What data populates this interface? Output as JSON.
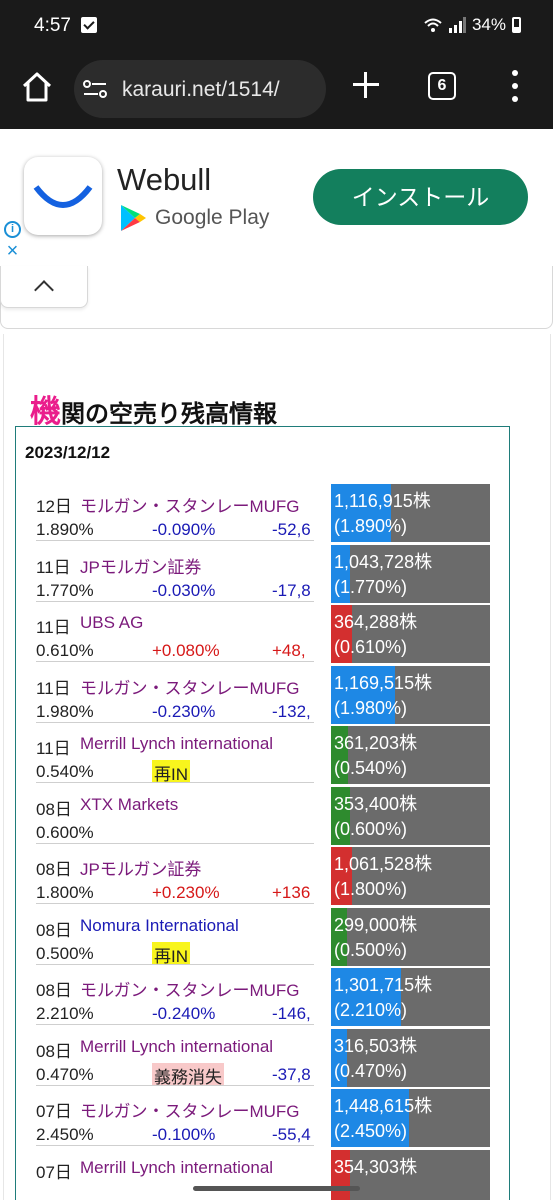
{
  "status_bar": {
    "time": "4:57",
    "battery": "34%"
  },
  "browser": {
    "url": "karauri.net/1514/",
    "tab_count": "6"
  },
  "ad": {
    "app_name": "Webull",
    "store": "Google Play",
    "install_label": "インストール",
    "info_icon": "info-icon",
    "close_icon": "close-icon"
  },
  "section": {
    "title_accent": "機",
    "title_rest": "関の空売り残高情報"
  },
  "table": {
    "date": "2023/12/12",
    "rows": [
      {
        "day": "12日",
        "name": "モルガン・スタンレーMUFG",
        "name_color": "purple",
        "ratio": "1.890%",
        "change": "-0.090%",
        "change_dir": "neg",
        "diff": "-52,6",
        "badge": "",
        "shares": "1,116,915株",
        "ratio_paren": "(1.890%)",
        "bar_color": "#1e88e5",
        "bar_fill": 0.38
      },
      {
        "day": "11日",
        "name": "JPモルガン証券",
        "name_color": "purple",
        "ratio": "1.770%",
        "change": "-0.030%",
        "change_dir": "neg",
        "diff": "-17,8",
        "badge": "",
        "shares": "1,043,728株",
        "ratio_paren": "(1.770%)",
        "bar_color": "#1e88e5",
        "bar_fill": 0.12
      },
      {
        "day": "11日",
        "name": "UBS AG",
        "name_color": "purple",
        "ratio": "0.610%",
        "change": "+0.080%",
        "change_dir": "pos",
        "diff": "+48,",
        "badge": "",
        "shares": "364,288株",
        "ratio_paren": "(0.610%)",
        "bar_color": "#d32f2f",
        "bar_fill": 0.13
      },
      {
        "day": "11日",
        "name": "モルガン・スタンレーMUFG",
        "name_color": "purple",
        "ratio": "1.980%",
        "change": "-0.230%",
        "change_dir": "neg",
        "diff": "-132,",
        "badge": "",
        "shares": "1,169,515株",
        "ratio_paren": "(1.980%)",
        "bar_color": "#1e88e5",
        "bar_fill": 0.4
      },
      {
        "day": "11日",
        "name": "Merrill Lynch international",
        "name_color": "purple",
        "ratio": "0.540%",
        "change": "",
        "change_dir": "",
        "diff": "",
        "badge": "再IN",
        "badge_color": "yellow",
        "shares": "361,203株",
        "ratio_paren": "(0.540%)",
        "bar_color": "#2e8b2e",
        "bar_fill": 0.11
      },
      {
        "day": "08日",
        "name": "XTX Markets",
        "name_color": "purple",
        "ratio": "0.600%",
        "change": "",
        "change_dir": "",
        "diff": "",
        "badge": "",
        "shares": "353,400株",
        "ratio_paren": "(0.600%)",
        "bar_color": "#2e8b2e",
        "bar_fill": 0.12
      },
      {
        "day": "08日",
        "name": "JPモルガン証券",
        "name_color": "purple",
        "ratio": "1.800%",
        "change": "+0.230%",
        "change_dir": "pos",
        "diff": "+136",
        "badge": "",
        "shares": "1,061,528株",
        "ratio_paren": "(1.800%)",
        "bar_color": "#d32f2f",
        "bar_fill": 0.13
      },
      {
        "day": "08日",
        "name": "Nomura International",
        "name_color": "blue",
        "ratio": "0.500%",
        "change": "",
        "change_dir": "",
        "diff": "",
        "badge": "再IN",
        "badge_color": "yellow",
        "shares": "299,000株",
        "ratio_paren": "(0.500%)",
        "bar_color": "#2e8b2e",
        "bar_fill": 0.1
      },
      {
        "day": "08日",
        "name": "モルガン・スタンレーMUFG",
        "name_color": "purple",
        "ratio": "2.210%",
        "change": "-0.240%",
        "change_dir": "neg",
        "diff": "-146,",
        "badge": "",
        "shares": "1,301,715株",
        "ratio_paren": "(2.210%)",
        "bar_color": "#1e88e5",
        "bar_fill": 0.44
      },
      {
        "day": "08日",
        "name": "Merrill Lynch international",
        "name_color": "purple",
        "ratio": "0.470%",
        "change": "",
        "change_dir": "",
        "diff": "-37,8",
        "badge": "義務消失",
        "badge_color": "pink",
        "shares": "316,503株",
        "ratio_paren": "(0.470%)",
        "bar_color": "#1e88e5",
        "bar_fill": 0.1
      },
      {
        "day": "07日",
        "name": "モルガン・スタンレーMUFG",
        "name_color": "purple",
        "ratio": "2.450%",
        "change": "-0.100%",
        "change_dir": "neg",
        "diff": "-55,4",
        "badge": "",
        "shares": "1,448,615株",
        "ratio_paren": "(2.450%)",
        "bar_color": "#1e88e5",
        "bar_fill": 0.49
      },
      {
        "day": "07日",
        "name": "Merrill Lynch international",
        "name_color": "purple",
        "ratio": "",
        "change": "",
        "change_dir": "",
        "diff": "",
        "badge": "",
        "shares": "354,303株",
        "ratio_paren": "",
        "bar_color": "#d32f2f",
        "bar_fill": 0.12
      }
    ]
  }
}
